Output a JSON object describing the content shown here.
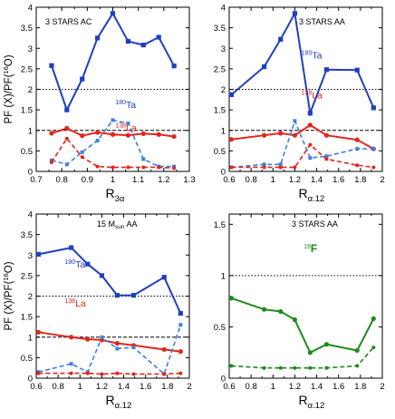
{
  "ylabel_shared": "PF (X)/PF(",
  "ylabel_sup": "16",
  "ylabel_end": "O)",
  "colors": {
    "Ta": "#1f3fbf",
    "La": "#e0261c",
    "Ta_dashed": "#3f7fe0",
    "La_dashed": "#e0261c",
    "F": "#1e8a1e",
    "axis": "#000000"
  },
  "chart_data": [
    {
      "type": "line",
      "title": "3 STARS  AC",
      "xlabel": "R",
      "xlabel_sub": "3α",
      "xlim": [
        0.7,
        1.3
      ],
      "ylim": [
        0,
        4
      ],
      "xticks": [
        "0.7",
        "0.8",
        "0.9",
        "1",
        "1.1",
        "1.2",
        "1.3"
      ],
      "yticks": [
        "0",
        "0.5",
        "1",
        "1.5",
        "2",
        "2.5",
        "3",
        "3.5",
        "4"
      ],
      "hlines": [
        2,
        1
      ],
      "labels": [
        {
          "sup": "180",
          "text": "Ta",
          "series": "Ta",
          "x": 1.01,
          "y": 1.55
        },
        {
          "sup": "138",
          "text": "La",
          "series": "La",
          "x": 1.01,
          "y": 0.98
        }
      ],
      "series": [
        {
          "key": "Ta",
          "style": "solid",
          "marker": "square",
          "x": [
            0.76,
            0.82,
            0.88,
            0.94,
            1.0,
            1.06,
            1.12,
            1.18,
            1.24
          ],
          "y": [
            2.58,
            1.5,
            2.25,
            3.25,
            3.85,
            3.17,
            3.08,
            3.27,
            2.57
          ]
        },
        {
          "key": "La",
          "style": "solid",
          "marker": "circle",
          "x": [
            0.76,
            0.82,
            0.88,
            0.94,
            1.0,
            1.06,
            1.12,
            1.18,
            1.24
          ],
          "y": [
            0.93,
            1.05,
            0.87,
            0.95,
            0.9,
            0.88,
            0.92,
            0.9,
            0.85
          ]
        },
        {
          "key": "Ta_dashed",
          "style": "dashed",
          "marker": "square",
          "x": [
            0.76,
            0.82,
            0.88,
            0.94,
            1.0,
            1.06,
            1.12,
            1.18,
            1.24
          ],
          "y": [
            0.27,
            0.17,
            0.47,
            0.75,
            1.25,
            1.17,
            0.3,
            0.12,
            0.12
          ]
        },
        {
          "key": "La_dashed",
          "style": "dashed",
          "marker": "circle",
          "x": [
            0.76,
            0.82,
            0.88,
            0.94,
            1.0,
            1.06,
            1.12,
            1.18,
            1.24
          ],
          "y": [
            0.22,
            0.8,
            0.35,
            0.12,
            0.1,
            0.1,
            0.1,
            0.1,
            0.08
          ]
        }
      ]
    },
    {
      "type": "line",
      "title": "3 STARS  AA",
      "xlabel": "R",
      "xlabel_sub": "α.12",
      "xlim": [
        0.6,
        2.0
      ],
      "ylim": [
        0,
        4
      ],
      "xticks": [
        "0.6",
        "0.8",
        "1",
        "1.2",
        "1.4",
        "1.6",
        "1.8",
        "2"
      ],
      "yticks": [
        "0",
        "0.5",
        "1",
        "1.5",
        "2",
        "2.5",
        "3",
        "3.5",
        "4"
      ],
      "hlines": [
        2,
        1
      ],
      "labels": [
        {
          "sup": "180",
          "text": "Ta",
          "series": "Ta",
          "x": 1.26,
          "y": 2.75
        },
        {
          "sup": "138",
          "text": "La",
          "series": "La",
          "x": 1.26,
          "y": 1.78
        }
      ],
      "series": [
        {
          "key": "Ta",
          "style": "solid",
          "marker": "square",
          "x": [
            0.62,
            0.92,
            1.07,
            1.2,
            1.34,
            1.49,
            1.77,
            1.92
          ],
          "y": [
            1.87,
            2.55,
            3.22,
            3.85,
            1.42,
            2.48,
            2.47,
            1.55
          ]
        },
        {
          "key": "La",
          "style": "solid",
          "marker": "circle",
          "x": [
            0.62,
            0.92,
            1.07,
            1.2,
            1.34,
            1.49,
            1.77,
            1.92
          ],
          "y": [
            0.78,
            0.88,
            0.93,
            0.88,
            1.13,
            0.88,
            0.77,
            0.55
          ]
        },
        {
          "key": "Ta_dashed",
          "style": "dashed",
          "marker": "square",
          "x": [
            0.62,
            0.92,
            1.07,
            1.2,
            1.34,
            1.49,
            1.77,
            1.92
          ],
          "y": [
            0.1,
            0.17,
            0.17,
            1.23,
            0.33,
            0.37,
            0.55,
            0.55
          ]
        },
        {
          "key": "La_dashed",
          "style": "dashed",
          "marker": "circle",
          "x": [
            0.62,
            0.92,
            1.07,
            1.2,
            1.34,
            1.49,
            1.77,
            1.92
          ],
          "y": [
            0.1,
            0.1,
            0.1,
            0.1,
            0.65,
            0.3,
            0.15,
            0.1
          ]
        }
      ]
    },
    {
      "type": "line",
      "title": "15 M",
      "title_sub": "sun",
      "title_end": " AA",
      "xlabel": "R",
      "xlabel_sub": "α.12",
      "xlim": [
        0.6,
        2.0
      ],
      "ylim": [
        0,
        4
      ],
      "xticks": [
        "0.6",
        "0.8",
        "1",
        "1.2",
        "1.4",
        "1.6",
        "1.8",
        "2"
      ],
      "yticks": [
        "0",
        "0.5",
        "1",
        "1.5",
        "2",
        "2.5",
        "3",
        "3.5",
        "4"
      ],
      "hlines": [
        2,
        1
      ],
      "labels": [
        {
          "sup": "180",
          "text": "Ta",
          "series": "Ta",
          "x": 0.86,
          "y": 2.7
        },
        {
          "sup": "138",
          "text": "La",
          "series": "La",
          "x": 0.86,
          "y": 1.75
        }
      ],
      "series": [
        {
          "key": "Ta",
          "style": "solid",
          "marker": "square",
          "x": [
            0.62,
            0.92,
            1.07,
            1.2,
            1.34,
            1.49,
            1.77,
            1.92
          ],
          "y": [
            3.02,
            3.18,
            2.78,
            2.5,
            2.02,
            2.02,
            2.46,
            1.58
          ]
        },
        {
          "key": "La",
          "style": "solid",
          "marker": "circle",
          "x": [
            0.62,
            0.92,
            1.07,
            1.2,
            1.34,
            1.49,
            1.77,
            1.92
          ],
          "y": [
            1.12,
            1.0,
            0.95,
            0.93,
            0.85,
            0.8,
            0.7,
            0.65
          ]
        },
        {
          "key": "Ta_dashed",
          "style": "dashed",
          "marker": "square",
          "x": [
            0.62,
            0.92,
            1.07,
            1.2,
            1.34,
            1.49,
            1.77,
            1.92
          ],
          "y": [
            0.15,
            0.35,
            0.15,
            1.0,
            0.72,
            0.75,
            0.1,
            1.3
          ]
        },
        {
          "key": "La_dashed",
          "style": "dashed",
          "marker": "circle",
          "x": [
            0.62,
            0.92,
            1.07,
            1.2,
            1.34,
            1.49,
            1.77,
            1.92
          ],
          "y": [
            0.12,
            0.12,
            0.12,
            0.1,
            0.12,
            0.1,
            0.1,
            0.12
          ]
        }
      ]
    },
    {
      "type": "line",
      "title": "3 STARS  AA",
      "xlabel": "R",
      "xlabel_sub": "α.12",
      "xlim": [
        0.6,
        2.0
      ],
      "ylim": [
        0,
        1.6
      ],
      "xticks": [
        "0.6",
        "0.8",
        "1",
        "1.2",
        "1.4",
        "1.6",
        "1.8",
        "2"
      ],
      "yticks": [
        "0",
        "0.5",
        "1",
        "1.5"
      ],
      "hlines": [
        1
      ],
      "labels": [
        {
          "sup": "19",
          "text": "F",
          "series": "F",
          "x": 1.28,
          "y": 1.23
        }
      ],
      "series": [
        {
          "key": "F",
          "style": "solid",
          "marker": "circle",
          "x": [
            0.62,
            0.92,
            1.07,
            1.2,
            1.34,
            1.49,
            1.77,
            1.92
          ],
          "y": [
            0.78,
            0.67,
            0.65,
            0.57,
            0.25,
            0.33,
            0.27,
            0.58
          ]
        },
        {
          "key": "F",
          "style": "dashed",
          "marker": "circle",
          "x": [
            0.62,
            0.92,
            1.07,
            1.2,
            1.34,
            1.49,
            1.77,
            1.92
          ],
          "y": [
            0.12,
            0.1,
            0.1,
            0.1,
            0.1,
            0.1,
            0.12,
            0.3
          ]
        }
      ]
    }
  ]
}
